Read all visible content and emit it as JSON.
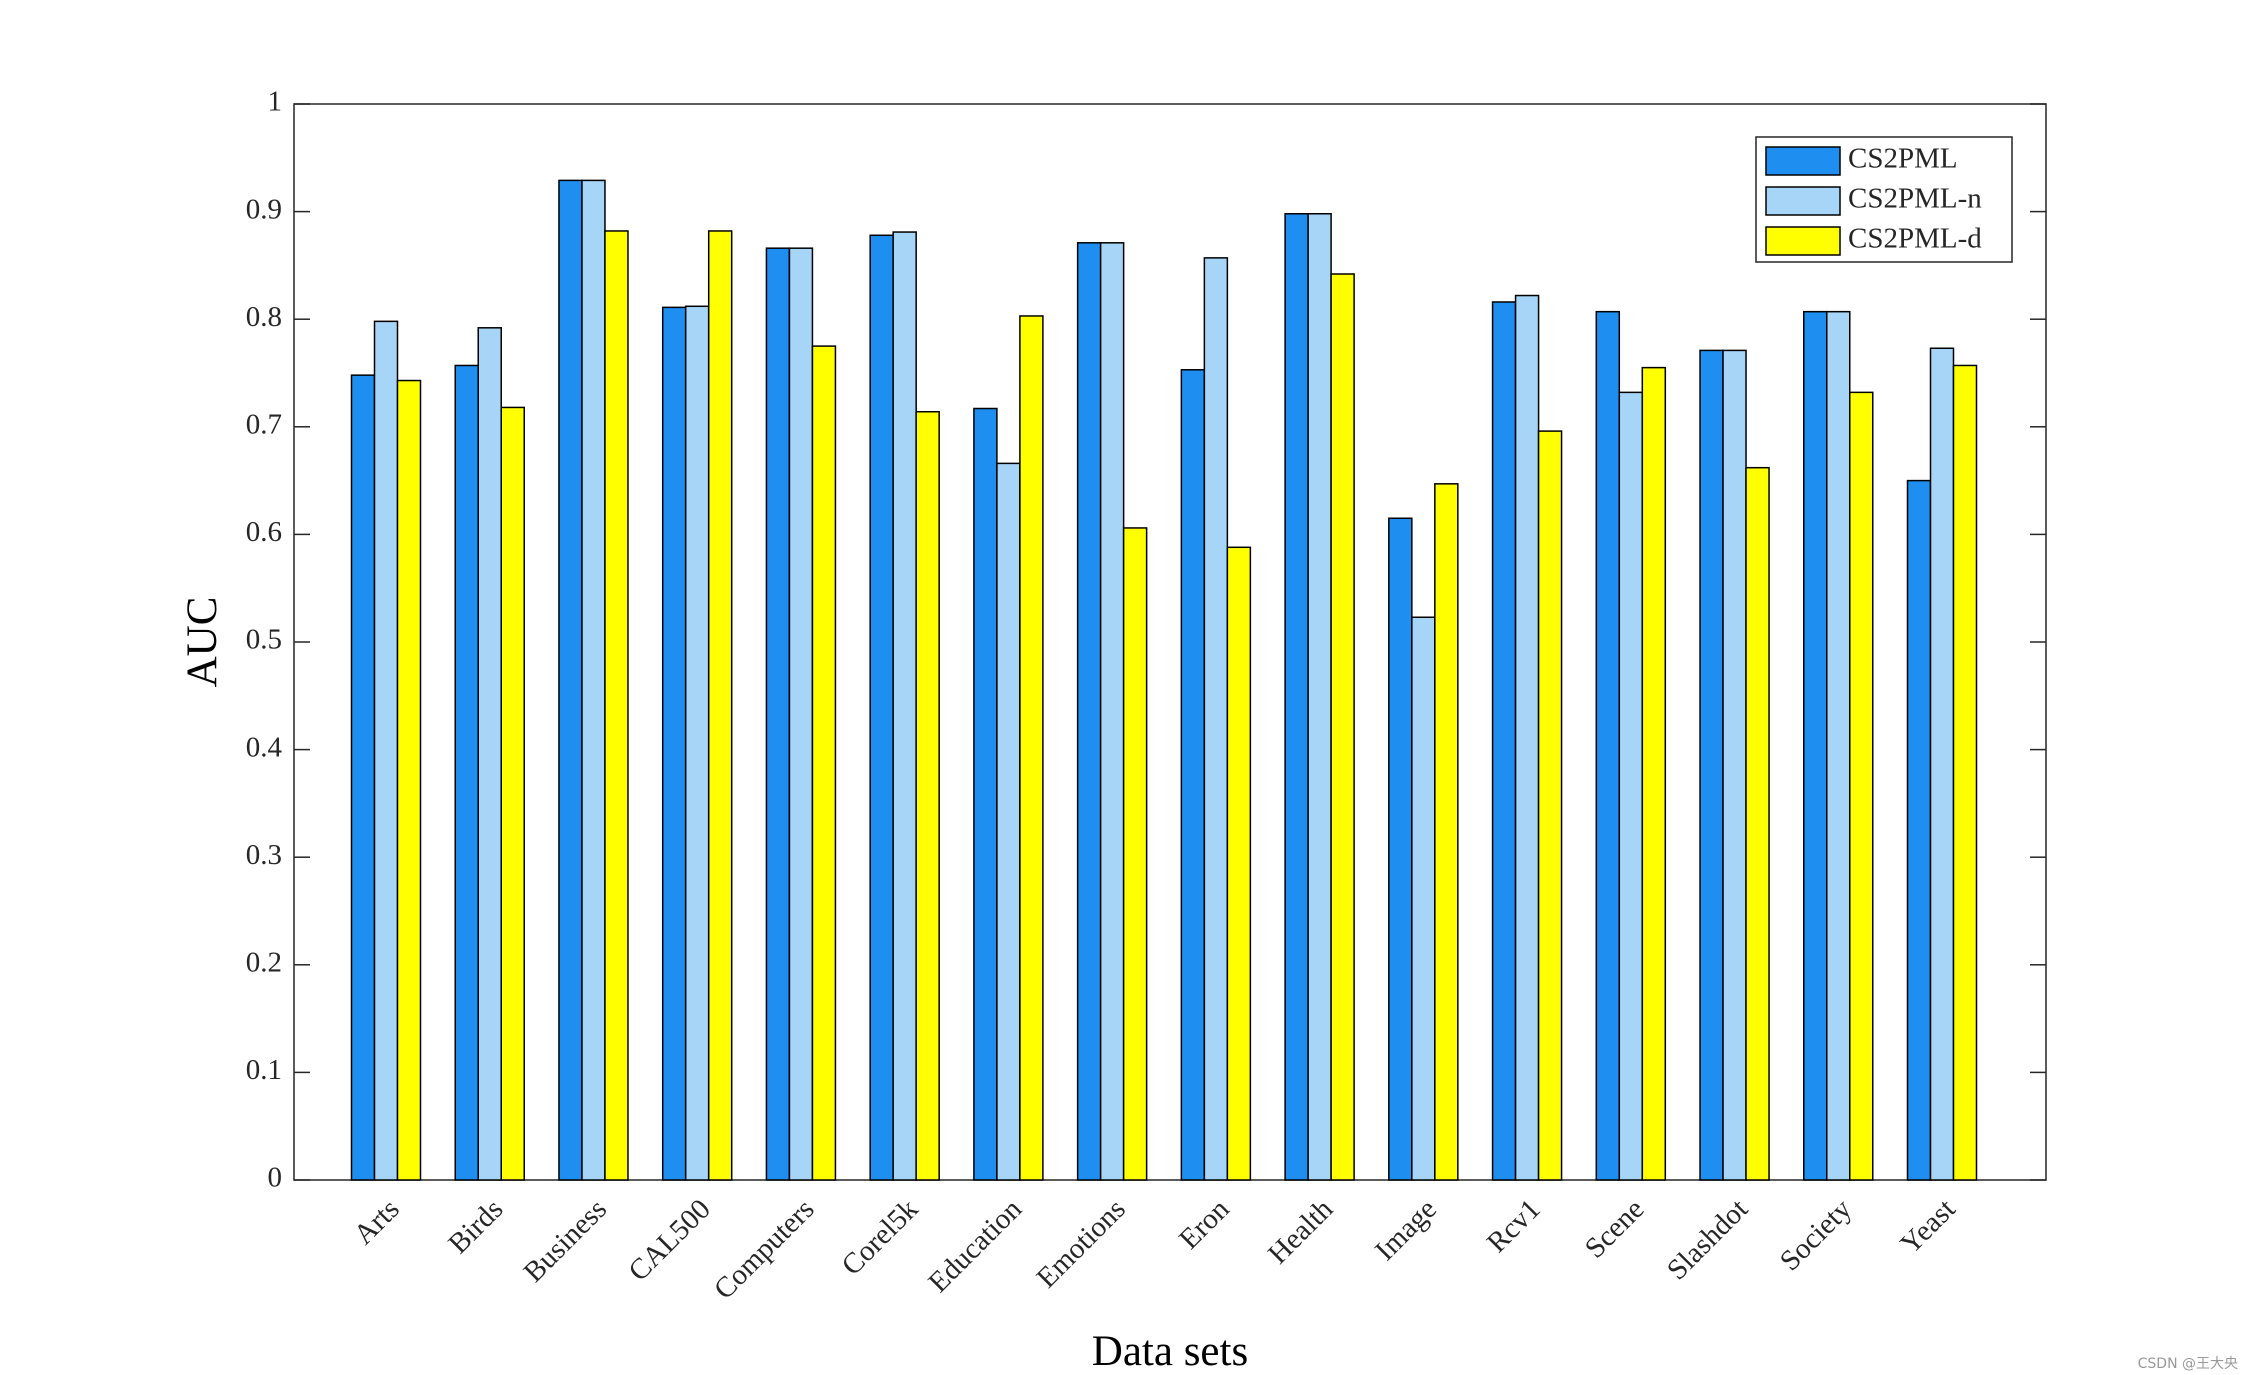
{
  "chart_data": {
    "type": "bar",
    "x_label": "Data sets",
    "y_label": "AUC",
    "categories": [
      "Arts",
      "Birds",
      "Business",
      "CAL500",
      "Computers",
      "Corel5k",
      "Education",
      "Emotions",
      "Eron",
      "Health",
      "Image",
      "Rcv1",
      "Scene",
      "Slashdot",
      "Society",
      "Yeast"
    ],
    "series": [
      {
        "name": "CS2PML",
        "color": "#1e8ff0",
        "values": [
          0.748,
          0.757,
          0.929,
          0.811,
          0.866,
          0.878,
          0.717,
          0.871,
          0.753,
          0.898,
          0.615,
          0.816,
          0.807,
          0.771,
          0.807,
          0.65
        ]
      },
      {
        "name": "CS2PML-n",
        "color": "#a6d5f7",
        "values": [
          0.798,
          0.792,
          0.929,
          0.812,
          0.866,
          0.881,
          0.666,
          0.871,
          0.857,
          0.898,
          0.523,
          0.822,
          0.732,
          0.771,
          0.807,
          0.773
        ]
      },
      {
        "name": "CS2PML-d",
        "color": "#ffff00",
        "values": [
          0.743,
          0.718,
          0.882,
          0.882,
          0.775,
          0.714,
          0.803,
          0.606,
          0.588,
          0.842,
          0.647,
          0.696,
          0.755,
          0.662,
          0.732,
          0.757
        ]
      }
    ],
    "ylim": [
      0,
      1
    ],
    "yticks": [
      0,
      0.1,
      0.2,
      0.3,
      0.4,
      0.5,
      0.6,
      0.7,
      0.8,
      0.9,
      1
    ],
    "grid": false,
    "legend": "top-right",
    "watermark": "CSDN @王大央"
  }
}
